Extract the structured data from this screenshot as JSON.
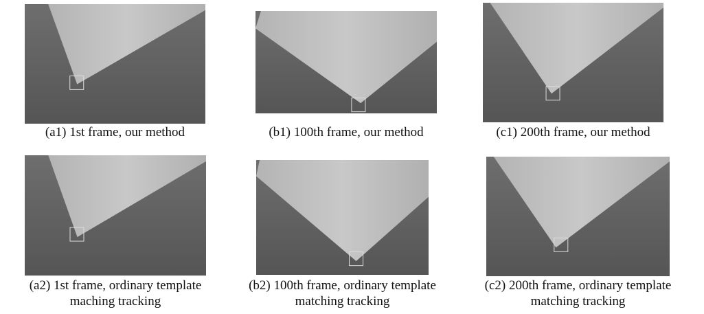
{
  "panels": [
    {
      "caption": [
        "(a1) 1st frame, our method"
      ]
    },
    {
      "caption": [
        "(b1) 100th frame, our method"
      ]
    },
    {
      "caption": [
        "(c1) 200th frame, our method"
      ]
    },
    {
      "caption": [
        "(a2) 1st frame, ordinary template",
        "maching tracking"
      ]
    },
    {
      "caption": [
        "(b2) 100th frame, ordinary template",
        "matching tracking"
      ]
    },
    {
      "caption": [
        "(c2) 200th frame, ordinary template",
        "matching tracking"
      ]
    }
  ]
}
